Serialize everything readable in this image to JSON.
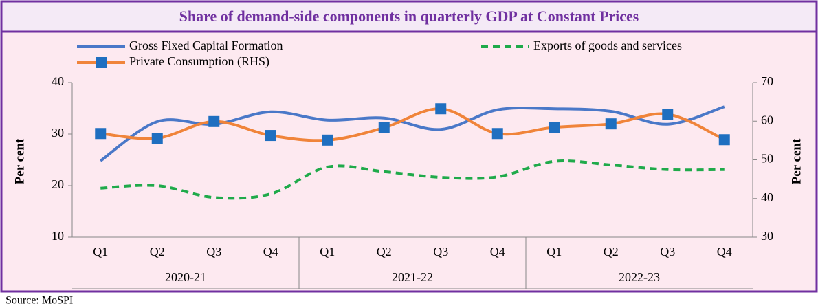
{
  "chart_data": {
    "type": "line",
    "title": "Share of demand-side components in quarterly GDP at Constant Prices",
    "categories": [
      "Q1",
      "Q2",
      "Q3",
      "Q4",
      "Q1",
      "Q2",
      "Q3",
      "Q4",
      "Q1",
      "Q2",
      "Q3",
      "Q4"
    ],
    "groups": [
      "2020-21",
      "2021-22",
      "2022-23"
    ],
    "y_label": "Per cent",
    "y2_label": "Per cent",
    "ylim": [
      10,
      40
    ],
    "yticks": [
      10,
      20,
      30,
      40
    ],
    "y2lim": [
      30,
      70
    ],
    "y2ticks": [
      30,
      40,
      50,
      60,
      70
    ],
    "series": [
      {
        "name": "Gross Fixed Capital Formation",
        "color": "#4a78c8",
        "style": "solid",
        "values": [
          24.8,
          32.4,
          31.9,
          34.3,
          32.7,
          33.1,
          30.9,
          34.7,
          34.9,
          34.4,
          31.9,
          35.3
        ]
      },
      {
        "name": "Exports of goods and services",
        "color": "#1faa4a",
        "style": "dashed",
        "values": [
          19.5,
          20.0,
          17.7,
          18.4,
          23.6,
          22.7,
          21.6,
          21.7,
          24.7,
          24.0,
          23.1,
          23.1
        ]
      },
      {
        "name": "Private Consumption (RHS)",
        "color": "#f0843a",
        "style": "solid",
        "axis": "y2",
        "marker_color": "#1f6fc0",
        "values": [
          56.8,
          55.6,
          59.9,
          56.3,
          55.1,
          58.3,
          63.2,
          56.8,
          58.4,
          59.3,
          61.8,
          55.2
        ]
      }
    ],
    "source": "Source: MoSPI"
  }
}
